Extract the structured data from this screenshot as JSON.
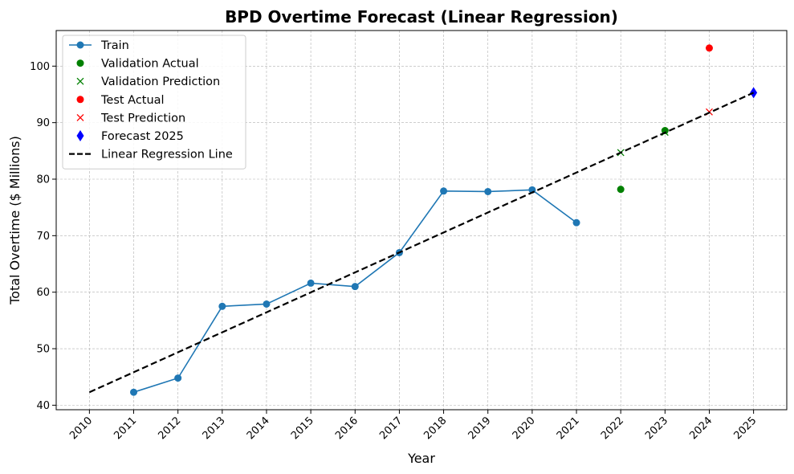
{
  "chart_data": {
    "type": "line",
    "title": "BPD Overtime Forecast (Linear Regression)",
    "xlabel": "Year",
    "ylabel": "Total Overtime ($ Millions)",
    "x_ticks": [
      "2010",
      "2011",
      "2012",
      "2013",
      "2014",
      "2015",
      "2016",
      "2017",
      "2018",
      "2019",
      "2020",
      "2021",
      "2022",
      "2023",
      "2024",
      "2025"
    ],
    "y_ticks": [
      40,
      50,
      60,
      70,
      80,
      90,
      100
    ],
    "xlim": [
      2009.25,
      2025.75
    ],
    "ylim": [
      39.2,
      106.3
    ],
    "grid": true,
    "legend_position": "top-left",
    "colors": {
      "train": "#1f77b4",
      "validation": "#008000",
      "test": "#ff0000",
      "forecast": "#0000ff",
      "regression": "#000000",
      "grid": "#b0b0b0"
    },
    "series": [
      {
        "name": "Train",
        "kind": "line-marker",
        "color": "#1f77b4",
        "x": [
          2011,
          2012,
          2013,
          2014,
          2015,
          2016,
          2017,
          2018,
          2019,
          2020,
          2021
        ],
        "y": [
          42.3,
          44.8,
          57.5,
          57.9,
          61.6,
          61.0,
          67.0,
          77.9,
          77.8,
          78.1,
          72.3
        ]
      },
      {
        "name": "Validation Actual",
        "kind": "dot",
        "color": "#008000",
        "x": [
          2022,
          2023
        ],
        "y": [
          78.2,
          88.6
        ]
      },
      {
        "name": "Validation Prediction",
        "kind": "x",
        "color": "#008000",
        "x": [
          2022,
          2023
        ],
        "y": [
          84.7,
          88.3
        ]
      },
      {
        "name": "Test Actual",
        "kind": "dot",
        "color": "#ff0000",
        "x": [
          2024
        ],
        "y": [
          103.2
        ]
      },
      {
        "name": "Test Prediction",
        "kind": "x",
        "color": "#ff0000",
        "x": [
          2024
        ],
        "y": [
          91.9
        ]
      },
      {
        "name": "Forecast 2025",
        "kind": "diamond",
        "color": "#0000ff",
        "x": [
          2025
        ],
        "y": [
          95.3
        ]
      },
      {
        "name": "Linear Regression Line",
        "kind": "dashed",
        "color": "#000000",
        "x": [
          2010,
          2025
        ],
        "y": [
          42.3,
          95.3
        ]
      }
    ]
  }
}
